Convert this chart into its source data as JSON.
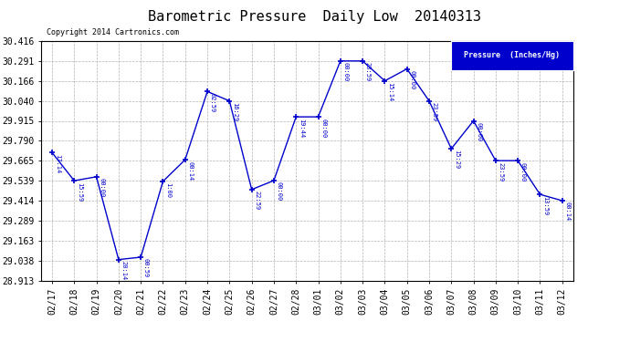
{
  "title": "Barometric Pressure  Daily Low  20140313",
  "copyright": "Copyright 2014 Cartronics.com",
  "legend_label": "Pressure  (Inches/Hg)",
  "dates": [
    "02/17",
    "02/18",
    "02/19",
    "02/20",
    "02/21",
    "02/22",
    "02/23",
    "02/24",
    "02/25",
    "02/26",
    "02/27",
    "02/28",
    "03/01",
    "03/02",
    "03/03",
    "03/04",
    "03/05",
    "03/06",
    "03/07",
    "03/08",
    "03/09",
    "03/10",
    "03/11",
    "03/12"
  ],
  "values": [
    29.716,
    29.539,
    29.564,
    29.044,
    29.059,
    29.535,
    29.671,
    30.099,
    30.04,
    29.484,
    29.54,
    29.94,
    29.94,
    30.291,
    30.291,
    30.166,
    30.241,
    30.04,
    29.74,
    29.915,
    29.665,
    29.665,
    29.453,
    29.414
  ],
  "times": [
    "17:14",
    "15:59",
    "00:00",
    "20:14",
    "00:59",
    "1:00",
    "00:14",
    "02:59",
    "16:29",
    "22:59",
    "00:00",
    "19:44",
    "00:00",
    "00:00",
    "23:59",
    "15:14",
    "00:00",
    "23:59",
    "15:29",
    "00:00",
    "23:59",
    "00:00",
    "13:59",
    "00:14"
  ],
  "ylim_min": 28.913,
  "ylim_max": 30.416,
  "yticks": [
    28.913,
    29.038,
    29.163,
    29.289,
    29.414,
    29.539,
    29.665,
    29.79,
    29.915,
    30.04,
    30.166,
    30.291,
    30.416
  ],
  "line_color": "#0000cc",
  "marker_color": "#0000cc",
  "bg_color": "#ffffff",
  "grid_color": "#aaaaaa",
  "title_color": "#000000",
  "legend_bg": "#0000cc",
  "legend_text_color": "#ffffff",
  "copyright_color": "#000000",
  "title_fontsize": 11,
  "tick_fontsize": 7,
  "annot_fontsize": 5,
  "copyright_fontsize": 6
}
